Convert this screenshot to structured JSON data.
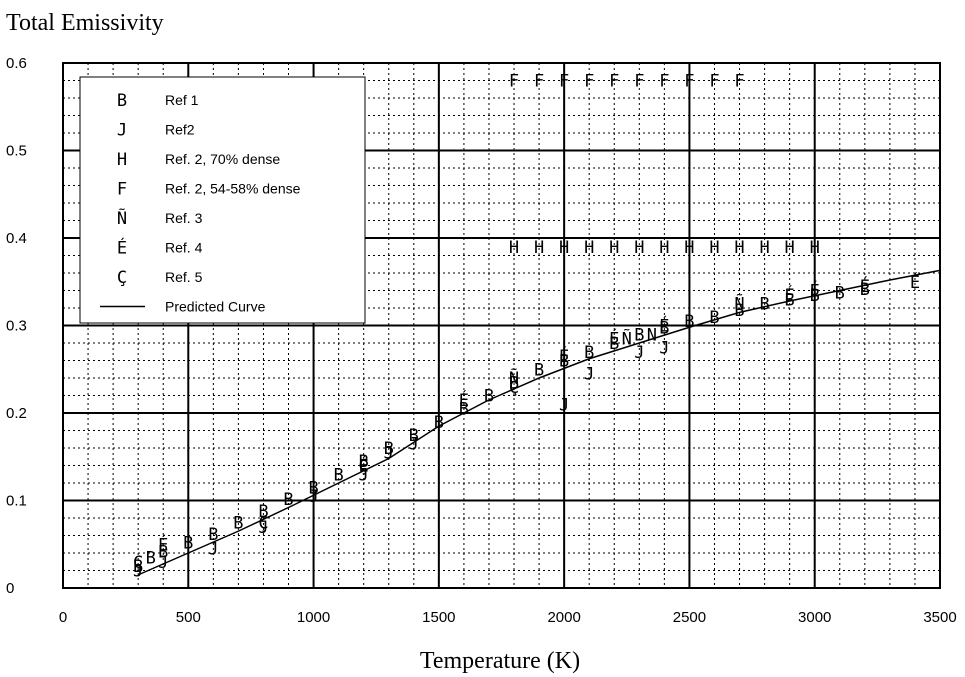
{
  "chart_data": {
    "type": "scatter",
    "title": "Total Emissivity",
    "xlabel": "Temperature (K)",
    "ylabel": "",
    "xlim": [
      0,
      3500
    ],
    "ylim": [
      0,
      0.6
    ],
    "x_ticks": [
      "0",
      "500",
      "1000",
      "1500",
      "2000",
      "2500",
      "3000",
      "3500"
    ],
    "y_ticks": [
      "0",
      "0.1",
      "0.2",
      "0.3",
      "0.4",
      "0.5",
      "0.6"
    ],
    "x_tick_values": [
      0,
      500,
      1000,
      1500,
      2000,
      2500,
      3000,
      3500
    ],
    "y_tick_values": [
      0,
      0.1,
      0.2,
      0.3,
      0.4,
      0.5,
      0.6
    ],
    "grid": true,
    "legend_position": "top-left",
    "series": [
      {
        "name": "Ref 1",
        "symbol": "B",
        "x": [
          300,
          350,
          400,
          500,
          600,
          700,
          800,
          900,
          1000,
          1100,
          1200,
          1300,
          1400,
          1500,
          1600,
          1700,
          1800,
          1900,
          2000,
          2100,
          2200,
          2300,
          2400,
          2500,
          2600,
          2700,
          2800,
          2900,
          3000,
          3100,
          3200
        ],
        "y": [
          0.025,
          0.035,
          0.042,
          0.052,
          0.062,
          0.075,
          0.088,
          0.102,
          0.115,
          0.13,
          0.145,
          0.16,
          0.175,
          0.19,
          0.205,
          0.22,
          0.235,
          0.25,
          0.26,
          0.27,
          0.28,
          0.29,
          0.298,
          0.305,
          0.31,
          0.318,
          0.325,
          0.33,
          0.335,
          0.338,
          0.342
        ]
      },
      {
        "name": "Ref2",
        "symbol": "J",
        "x": [
          300,
          400,
          600,
          800,
          1000,
          1200,
          1300,
          1400,
          2000,
          2100,
          2300,
          2400
        ],
        "y": [
          0.02,
          0.03,
          0.045,
          0.07,
          0.105,
          0.13,
          0.155,
          0.165,
          0.21,
          0.245,
          0.27,
          0.275
        ]
      },
      {
        "name": "Ref. 2, 70% dense",
        "symbol": "H",
        "x": [
          1800,
          1900,
          2000,
          2100,
          2200,
          2300,
          2400,
          2500,
          2600,
          2700,
          2800,
          2900,
          3000
        ],
        "y": [
          0.39,
          0.39,
          0.39,
          0.39,
          0.39,
          0.39,
          0.39,
          0.39,
          0.39,
          0.39,
          0.39,
          0.39,
          0.39
        ]
      },
      {
        "name": "Ref. 2, 54-58% dense",
        "symbol": "F",
        "x": [
          1800,
          1900,
          2000,
          2100,
          2200,
          2300,
          2400,
          2500,
          2600,
          2700
        ],
        "y": [
          0.58,
          0.58,
          0.58,
          0.58,
          0.58,
          0.58,
          0.58,
          0.58,
          0.58,
          0.58
        ]
      },
      {
        "name": "Ref. 3",
        "symbol": "Ñ",
        "x": [
          1800,
          2250,
          2350,
          2700
        ],
        "y": [
          0.24,
          0.285,
          0.29,
          0.325
        ]
      },
      {
        "name": "Ref. 4",
        "symbol": "É",
        "x": [
          400,
          1200,
          1600,
          2000,
          2200,
          2400,
          2900,
          3000,
          3200,
          3400
        ],
        "y": [
          0.05,
          0.14,
          0.215,
          0.265,
          0.285,
          0.3,
          0.335,
          0.34,
          0.345,
          0.35
        ]
      },
      {
        "name": "Ref. 5",
        "symbol": "Ç",
        "x": [
          300,
          800,
          1200,
          1800
        ],
        "y": [
          0.03,
          0.075,
          0.14,
          0.23
        ]
      },
      {
        "name": "Predicted Curve",
        "line": true,
        "x": [
          300,
          500,
          700,
          900,
          1100,
          1300,
          1500,
          1700,
          1900,
          2100,
          2300,
          2500,
          2700,
          2900,
          3100,
          3300,
          3500
        ],
        "y": [
          0.015,
          0.04,
          0.065,
          0.092,
          0.12,
          0.148,
          0.185,
          0.215,
          0.24,
          0.262,
          0.28,
          0.298,
          0.315,
          0.328,
          0.34,
          0.352,
          0.363
        ]
      }
    ]
  }
}
